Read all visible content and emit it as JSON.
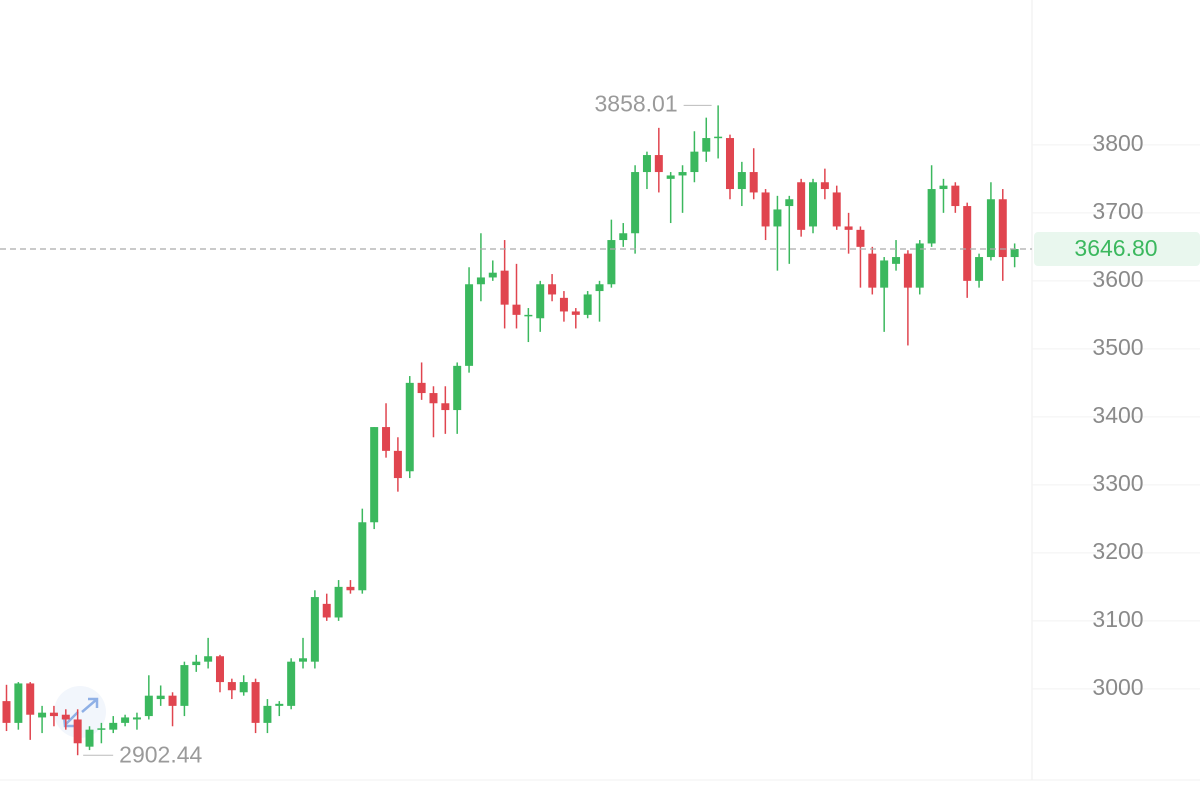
{
  "chart_data": {
    "type": "candlestick",
    "up_color": "#3bb85e",
    "down_color": "#e0454f",
    "ylim": [
      2866,
      4013
    ],
    "yticks": [
      3000,
      3100,
      3200,
      3300,
      3400,
      3500,
      3600,
      3700,
      3800
    ],
    "last_price": {
      "value": 3646.8,
      "label": "3646.80"
    },
    "max_marker": 3858.01,
    "min_marker": 2902.44,
    "open": [
      2982,
      2950,
      3008,
      2958,
      2965,
      2962,
      2955,
      2915,
      2940,
      2940,
      2950,
      2955,
      2960,
      2985,
      2990,
      2975,
      3035,
      3040,
      3048,
      3010,
      2995,
      3010,
      2950,
      2975,
      2975,
      3040,
      3040,
      3125,
      3105,
      3150,
      3145,
      3245,
      3385,
      3350,
      3320,
      3450,
      3435,
      3420,
      3410,
      3475,
      3595,
      3605,
      3615,
      3565,
      3550,
      3545,
      3595,
      3575,
      3555,
      3550,
      3585,
      3595,
      3660,
      3670,
      3760,
      3785,
      3750,
      3755,
      3760,
      3790,
      3810,
      3810,
      3735,
      3760,
      3730,
      3680,
      3710,
      3745,
      3680,
      3745,
      3730,
      3680,
      3675,
      3640,
      3590,
      3625,
      3640,
      3590,
      3655,
      3735,
      3740,
      3710,
      3600,
      3635,
      3720,
      3635
    ],
    "high": [
      3006,
      3010,
      3010,
      2975,
      2975,
      2970,
      2970,
      2945,
      2950,
      2960,
      2962,
      2965,
      3020,
      3005,
      2995,
      3040,
      3050,
      3075,
      3050,
      3015,
      3020,
      3015,
      2985,
      2982,
      3045,
      3075,
      3145,
      3140,
      3160,
      3160,
      3265,
      3385,
      3420,
      3370,
      3460,
      3480,
      3445,
      3445,
      3480,
      3620,
      3670,
      3630,
      3660,
      3625,
      3560,
      3600,
      3610,
      3585,
      3560,
      3585,
      3600,
      3690,
      3685,
      3770,
      3790,
      3825,
      3760,
      3770,
      3820,
      3840,
      3858.01,
      3815,
      3775,
      3795,
      3735,
      3725,
      3725,
      3750,
      3750,
      3765,
      3740,
      3700,
      3680,
      3650,
      3635,
      3660,
      3645,
      3660,
      3770,
      3750,
      3745,
      3715,
      3640,
      3745,
      3735,
      3655
    ],
    "low": [
      2938,
      2940,
      2925,
      2935,
      2945,
      2940,
      2902.44,
      2910,
      2920,
      2935,
      2945,
      2940,
      2955,
      2975,
      2945,
      2960,
      3025,
      3030,
      2995,
      2985,
      2990,
      2935,
      2935,
      2960,
      2970,
      3030,
      3030,
      3100,
      3100,
      3140,
      3140,
      3235,
      3340,
      3290,
      3310,
      3425,
      3370,
      3375,
      3375,
      3465,
      3570,
      3600,
      3530,
      3530,
      3510,
      3525,
      3570,
      3540,
      3530,
      3545,
      3540,
      3590,
      3650,
      3640,
      3735,
      3730,
      3685,
      3700,
      3745,
      3775,
      3780,
      3720,
      3710,
      3720,
      3660,
      3615,
      3625,
      3665,
      3670,
      3720,
      3675,
      3640,
      3590,
      3580,
      3525,
      3615,
      3505,
      3580,
      3650,
      3700,
      3700,
      3575,
      3590,
      3630,
      3600,
      3620
    ],
    "close": [
      2950,
      3008,
      2962,
      2965,
      2960,
      2955,
      2920,
      2940,
      2942,
      2950,
      2958,
      2958,
      2990,
      2990,
      2975,
      3035,
      3040,
      3048,
      3010,
      2998,
      3010,
      2950,
      2975,
      2978,
      3040,
      3045,
      3135,
      3105,
      3150,
      3145,
      3245,
      3385,
      3350,
      3310,
      3450,
      3435,
      3420,
      3410,
      3475,
      3595,
      3605,
      3612,
      3565,
      3550,
      3550,
      3595,
      3580,
      3555,
      3550,
      3580,
      3595,
      3660,
      3670,
      3760,
      3785,
      3760,
      3755,
      3760,
      3790,
      3810,
      3812,
      3735,
      3760,
      3730,
      3680,
      3705,
      3720,
      3675,
      3745,
      3735,
      3680,
      3675,
      3650,
      3590,
      3630,
      3635,
      3590,
      3655,
      3735,
      3740,
      3710,
      3600,
      3635,
      3720,
      3635,
      3646.8
    ]
  }
}
